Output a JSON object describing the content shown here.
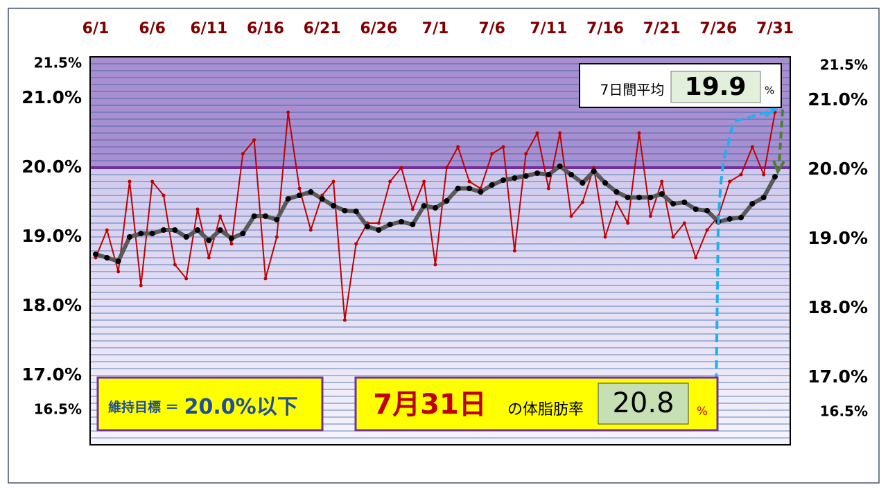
{
  "chart_data": {
    "type": "line",
    "categories": [
      "6/1",
      null,
      null,
      null,
      null,
      "6/6",
      null,
      null,
      null,
      null,
      "6/11",
      null,
      null,
      null,
      null,
      "6/16",
      null,
      null,
      null,
      null,
      "6/21",
      null,
      null,
      null,
      null,
      "6/26",
      null,
      null,
      null,
      null,
      "7/1",
      null,
      null,
      null,
      null,
      "7/6",
      null,
      null,
      null,
      null,
      "7/11",
      null,
      null,
      null,
      null,
      "7/16",
      null,
      null,
      null,
      null,
      "7/21",
      null,
      null,
      null,
      null,
      "7/26",
      null,
      null,
      null,
      null,
      "7/31"
    ],
    "series": [
      {
        "color": "#c00000",
        "values": [
          18.7,
          19.1,
          18.5,
          19.8,
          18.3,
          19.8,
          19.6,
          18.6,
          18.4,
          19.4,
          18.7,
          19.3,
          18.9,
          20.2,
          20.4,
          18.4,
          19.0,
          20.8,
          19.7,
          19.1,
          19.6,
          19.8,
          17.8,
          18.9,
          19.2,
          19.2,
          19.8,
          20.0,
          19.4,
          19.8,
          18.6,
          20.0,
          20.3,
          19.8,
          19.7,
          20.2,
          20.3,
          18.8,
          20.2,
          20.5,
          19.7,
          20.5,
          19.3,
          19.5,
          20.0,
          19.0,
          19.5,
          19.2,
          20.5,
          19.3,
          19.8,
          19.0,
          19.2,
          18.7,
          19.1,
          19.3,
          19.8,
          19.9,
          20.3,
          19.9,
          20.8
        ]
      },
      {
        "color": "#595959",
        "marker_color": "#000000",
        "values": [
          18.75,
          18.7,
          18.65,
          19.0,
          19.05,
          19.05,
          19.1,
          19.1,
          19.0,
          19.1,
          18.95,
          19.1,
          18.98,
          19.05,
          19.3,
          19.3,
          19.25,
          19.55,
          19.6,
          19.65,
          19.55,
          19.45,
          19.38,
          19.37,
          19.15,
          19.1,
          19.18,
          19.22,
          19.18,
          19.45,
          19.42,
          19.52,
          19.7,
          19.7,
          19.65,
          19.75,
          19.82,
          19.85,
          19.88,
          19.92,
          19.9,
          20.02,
          19.9,
          19.78,
          19.95,
          19.78,
          19.65,
          19.57,
          19.57,
          19.57,
          19.62,
          19.48,
          19.5,
          19.4,
          19.38,
          19.22,
          19.26,
          19.28,
          19.48,
          19.57,
          19.87
        ]
      }
    ],
    "ylim": [
      16.0,
      21.6
    ],
    "yticks": [
      {
        "value": 16.5,
        "label": "16.5%"
      },
      {
        "value": 17.0,
        "label": "17.0%"
      },
      {
        "value": 18.0,
        "label": "18.0%"
      },
      {
        "value": 19.0,
        "label": "19.0%"
      },
      {
        "value": 20.0,
        "label": "20.0%"
      },
      {
        "value": 21.0,
        "label": "21.0%"
      },
      {
        "value": 21.5,
        "label": "21.5%"
      }
    ],
    "minor_grid_step": 0.1,
    "grid_color": "#2e5ea8",
    "target": 20.0,
    "target_color": "#7030a0",
    "above_target_color": "#a78fd0"
  },
  "annotations": {
    "avg_box": {
      "label": "7日間平均",
      "value": "19.9",
      "unit": "%"
    },
    "target_box": {
      "label": "維持目標 ＝",
      "text": "20.0%以下"
    },
    "date_box": {
      "date": "7月31日",
      "label": "の体脂肪率",
      "value": "20.8",
      "unit": "%"
    }
  }
}
